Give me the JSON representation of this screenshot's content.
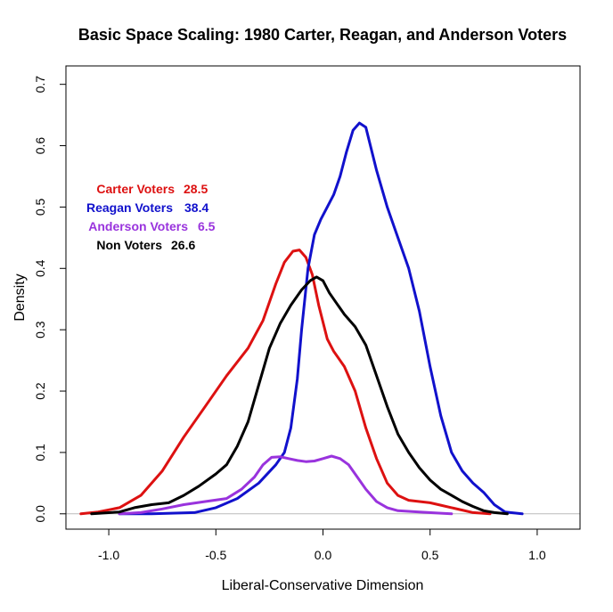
{
  "chart_data": {
    "type": "line",
    "title": "Basic Space Scaling: 1980 Carter, Reagan, and Anderson Voters",
    "xlabel": "Liberal-Conservative Dimension",
    "ylabel": "Density",
    "xlim": [
      -1.2,
      1.2
    ],
    "ylim": [
      -0.025,
      0.73
    ],
    "xticks": [
      -1.0,
      -0.5,
      0.0,
      0.5,
      1.0
    ],
    "xtick_labels": [
      "-1.0",
      "-0.5",
      "0.0",
      "0.5",
      "1.0"
    ],
    "yticks": [
      0.0,
      0.1,
      0.2,
      0.3,
      0.4,
      0.5,
      0.6,
      0.7
    ],
    "ytick_labels": [
      "0.0",
      "0.1",
      "0.2",
      "0.3",
      "0.4",
      "0.5",
      "0.6",
      "0.7"
    ],
    "baseline": 0,
    "legend_position": "upper-left",
    "series": [
      {
        "name": "Carter Voters",
        "value": "28.5",
        "color": "#dd1111",
        "x": [
          -1.13,
          -1.05,
          -0.95,
          -0.85,
          -0.75,
          -0.65,
          -0.55,
          -0.45,
          -0.35,
          -0.28,
          -0.22,
          -0.18,
          -0.14,
          -0.11,
          -0.08,
          -0.05,
          -0.02,
          0.02,
          0.05,
          0.1,
          0.15,
          0.2,
          0.25,
          0.3,
          0.35,
          0.4,
          0.45,
          0.5,
          0.55,
          0.6,
          0.65,
          0.7,
          0.78
        ],
        "y": [
          0.0,
          0.003,
          0.01,
          0.03,
          0.07,
          0.125,
          0.175,
          0.225,
          0.27,
          0.315,
          0.375,
          0.41,
          0.428,
          0.43,
          0.418,
          0.39,
          0.34,
          0.285,
          0.265,
          0.24,
          0.2,
          0.14,
          0.09,
          0.05,
          0.03,
          0.022,
          0.02,
          0.018,
          0.014,
          0.01,
          0.006,
          0.002,
          0.0
        ]
      },
      {
        "name": "Reagan Voters",
        "value": "38.4",
        "color": "#1111cc",
        "x": [
          -0.95,
          -0.8,
          -0.6,
          -0.5,
          -0.4,
          -0.3,
          -0.22,
          -0.18,
          -0.15,
          -0.12,
          -0.1,
          -0.07,
          -0.04,
          -0.01,
          0.02,
          0.05,
          0.08,
          0.11,
          0.14,
          0.17,
          0.2,
          0.25,
          0.3,
          0.35,
          0.4,
          0.45,
          0.5,
          0.55,
          0.6,
          0.65,
          0.7,
          0.75,
          0.8,
          0.85,
          0.93
        ],
        "y": [
          0.0,
          0.0,
          0.002,
          0.01,
          0.025,
          0.05,
          0.08,
          0.1,
          0.14,
          0.22,
          0.3,
          0.4,
          0.455,
          0.48,
          0.5,
          0.52,
          0.55,
          0.59,
          0.625,
          0.637,
          0.63,
          0.56,
          0.5,
          0.45,
          0.4,
          0.33,
          0.24,
          0.16,
          0.1,
          0.07,
          0.05,
          0.035,
          0.015,
          0.003,
          0.0
        ]
      },
      {
        "name": "Anderson Voters",
        "value": "6.5",
        "color": "#9933dd",
        "x": [
          -0.95,
          -0.85,
          -0.75,
          -0.65,
          -0.55,
          -0.45,
          -0.38,
          -0.32,
          -0.28,
          -0.24,
          -0.2,
          -0.16,
          -0.12,
          -0.08,
          -0.04,
          0.0,
          0.04,
          0.08,
          0.12,
          0.16,
          0.2,
          0.25,
          0.3,
          0.35,
          0.45,
          0.55,
          0.6
        ],
        "y": [
          0.0,
          0.002,
          0.008,
          0.015,
          0.02,
          0.025,
          0.04,
          0.06,
          0.08,
          0.092,
          0.093,
          0.09,
          0.087,
          0.085,
          0.086,
          0.09,
          0.094,
          0.09,
          0.08,
          0.06,
          0.04,
          0.02,
          0.01,
          0.005,
          0.003,
          0.001,
          0.0
        ]
      },
      {
        "name": "Non Voters",
        "value": "26.6",
        "color": "#000000",
        "x": [
          -1.08,
          -0.95,
          -0.88,
          -0.8,
          -0.72,
          -0.65,
          -0.58,
          -0.5,
          -0.45,
          -0.4,
          -0.35,
          -0.3,
          -0.25,
          -0.2,
          -0.15,
          -0.1,
          -0.06,
          -0.03,
          0.0,
          0.03,
          0.06,
          0.1,
          0.15,
          0.2,
          0.25,
          0.3,
          0.35,
          0.4,
          0.45,
          0.5,
          0.55,
          0.6,
          0.65,
          0.7,
          0.75,
          0.8,
          0.86
        ],
        "y": [
          0.0,
          0.003,
          0.01,
          0.015,
          0.018,
          0.03,
          0.045,
          0.065,
          0.08,
          0.11,
          0.15,
          0.21,
          0.27,
          0.31,
          0.34,
          0.365,
          0.38,
          0.386,
          0.38,
          0.36,
          0.345,
          0.325,
          0.305,
          0.275,
          0.225,
          0.175,
          0.13,
          0.1,
          0.075,
          0.055,
          0.04,
          0.03,
          0.02,
          0.012,
          0.005,
          0.002,
          0.0
        ]
      }
    ],
    "colors": {
      "axis": "#000000",
      "baseline": "#bbbbbb"
    }
  }
}
